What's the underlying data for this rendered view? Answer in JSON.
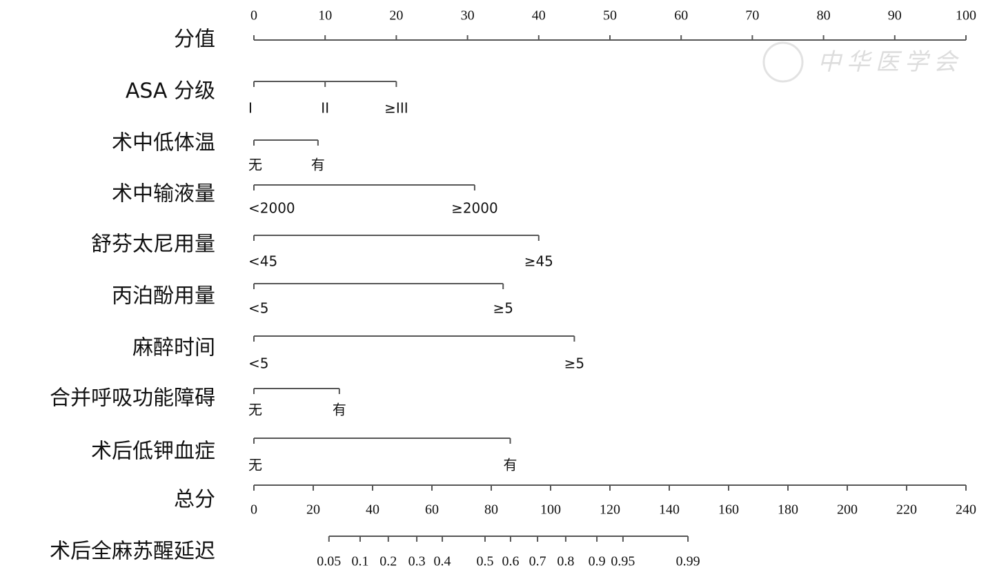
{
  "chart_data": {
    "type": "nomogram",
    "watermark": "中华医学会",
    "points_axis": {
      "label": "分值",
      "xlim": [
        0,
        100
      ],
      "xticks": [
        0,
        10,
        20,
        30,
        40,
        50,
        60,
        70,
        80,
        90,
        100
      ]
    },
    "variables": [
      {
        "name": "ASA 分级",
        "levels": [
          "I",
          "II",
          "≥III"
        ],
        "points": [
          0,
          10,
          20
        ]
      },
      {
        "name": "术中低体温",
        "levels": [
          "无",
          "有"
        ],
        "points": [
          0,
          9
        ]
      },
      {
        "name": "术中输液量",
        "levels": [
          "<2000",
          "≥2000"
        ],
        "points": [
          0,
          31
        ]
      },
      {
        "name": "舒芬太尼用量",
        "levels": [
          "<45",
          "≥45"
        ],
        "points": [
          0,
          40
        ]
      },
      {
        "name": "丙泊酚用量",
        "levels": [
          "<5",
          "≥5"
        ],
        "points": [
          0,
          35
        ]
      },
      {
        "name": "麻醉时间",
        "levels": [
          "<5",
          "≥5"
        ],
        "points": [
          0,
          45
        ]
      },
      {
        "name": "合并呼吸功能障碍",
        "levels": [
          "无",
          "有"
        ],
        "points": [
          0,
          12
        ]
      },
      {
        "name": "术后低钾血症",
        "levels": [
          "无",
          "有"
        ],
        "points": [
          0,
          36
        ]
      }
    ],
    "total_axis": {
      "label": "总分",
      "xlim": [
        0,
        240
      ],
      "xticks": [
        0,
        20,
        40,
        60,
        80,
        100,
        120,
        140,
        160,
        180,
        200,
        220,
        240
      ]
    },
    "probability_axis": {
      "label": "术后全麻苏醒延迟",
      "ticks": [
        0.05,
        0.1,
        0.2,
        0.3,
        0.4,
        0.5,
        0.6,
        0.7,
        0.8,
        0.9,
        0.95,
        0.99
      ],
      "points": [
        25.3,
        35.8,
        45.3,
        54.9,
        63.5,
        77.9,
        86.5,
        95.6,
        105.1,
        115.6,
        124.4,
        146.3
      ]
    }
  }
}
